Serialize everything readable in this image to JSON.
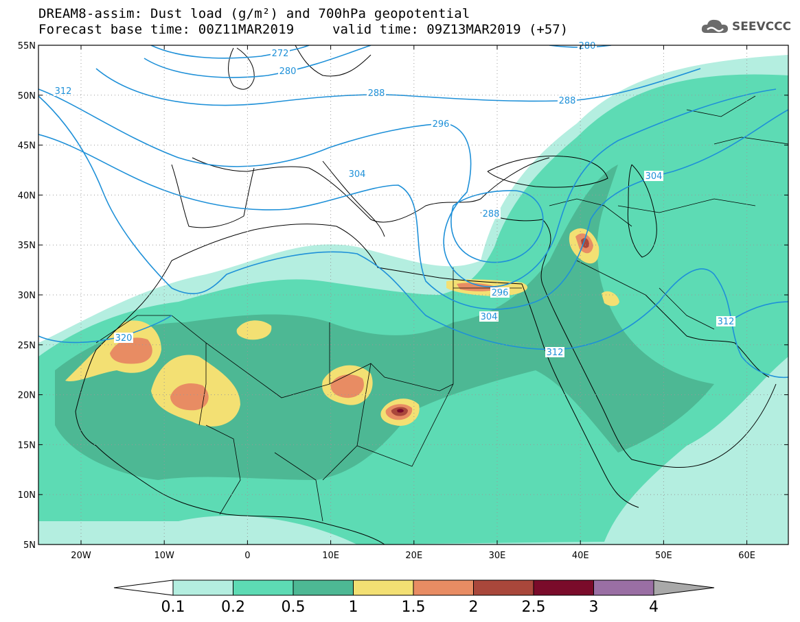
{
  "header": {
    "line1": "DREAM8-assim: Dust load (g/m²) and 700hPa geopotential",
    "line2": "Forecast base time: 00Z11MAR2019",
    "valid": "valid time: 09Z13MAR2019 (+57)"
  },
  "logo": {
    "text": "SEEVCCC",
    "icon": "cloud-icon"
  },
  "map": {
    "lat_labels": [
      "55N",
      "50N",
      "45N",
      "40N",
      "35N",
      "30N",
      "25N",
      "20N",
      "15N",
      "10N",
      "5N"
    ],
    "lon_labels": [
      "20W",
      "10W",
      "0",
      "10E",
      "20E",
      "30E",
      "40E",
      "50E",
      "60E"
    ],
    "contour_labels": [
      "272",
      "280",
      "280",
      "288",
      "288",
      "288",
      "296",
      "296",
      "304",
      "304",
      "304",
      "312",
      "312",
      "312",
      "320"
    ],
    "contour_color": "#1e90d8"
  },
  "colorbar": {
    "levels": [
      "0.1",
      "0.2",
      "0.5",
      "1",
      "1.5",
      "2",
      "2.5",
      "3",
      "4"
    ],
    "colors": [
      "#b4eee0",
      "#5ddbb4",
      "#4db894",
      "#f3e073",
      "#e88c63",
      "#a9473b",
      "#7a0b2a",
      "#9a6fa4"
    ],
    "under_color": "#ffffff",
    "over_color": "#a9a9a9"
  }
}
